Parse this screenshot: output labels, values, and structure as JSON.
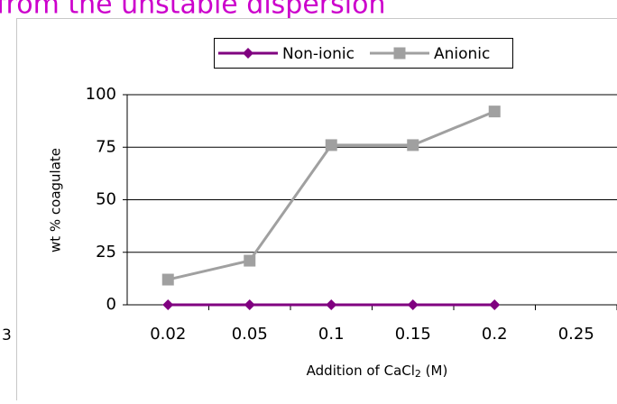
{
  "slide_title": "from the unstable dispersion",
  "page_number": "3",
  "chart_data": {
    "type": "line",
    "x_label": {
      "text": "Addition of CaCl",
      "sub": "2",
      "tail": " (M)"
    },
    "y_label": "wt % coagulate",
    "categories": [
      "0.02",
      "0.05",
      "0.1",
      "0.15",
      "0.2",
      "0.25"
    ],
    "series": [
      {
        "name": "Non-ionic",
        "color": "#800080",
        "marker": "diamond",
        "values": [
          0,
          0,
          0,
          0,
          0,
          null
        ]
      },
      {
        "name": "Anionic",
        "color": "#a0a0a0",
        "marker": "square",
        "values": [
          12,
          21,
          76,
          76,
          92,
          null
        ]
      }
    ],
    "ylim": [
      0,
      100
    ],
    "yticks": [
      0,
      25,
      50,
      75,
      100
    ],
    "grid": true,
    "legend": "top"
  }
}
